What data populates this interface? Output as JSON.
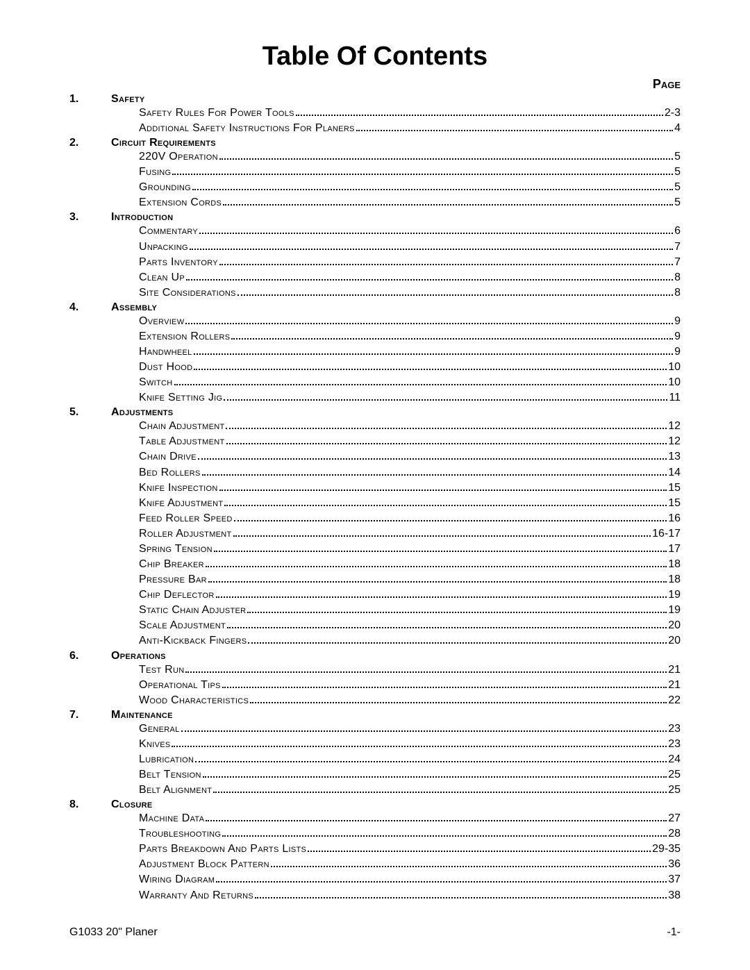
{
  "title": "Table Of Contents",
  "page_header": "Page",
  "text_color": "#000000",
  "background_color": "#ffffff",
  "title_fontsize": 38,
  "body_fontsize": 16,
  "footer_left": "G1033 20\" Planer",
  "footer_right": "-1-",
  "sections": [
    {
      "num": "1.",
      "title": "Safety",
      "entries": [
        {
          "label": "Safety Rules For Power Tools",
          "page": "2-3"
        },
        {
          "label": "Additional Safety Instructions For Planers",
          "page": "4"
        }
      ]
    },
    {
      "num": "2.",
      "title": "Circuit Requirements",
      "entries": [
        {
          "label": "220V Operation",
          "page": "5"
        },
        {
          "label": "Fusing",
          "page": "5"
        },
        {
          "label": "Grounding",
          "page": "5"
        },
        {
          "label": "Extension Cords",
          "page": "5"
        }
      ]
    },
    {
      "num": "3.",
      "title": "Introduction",
      "entries": [
        {
          "label": "Commentary",
          "page": "6"
        },
        {
          "label": "Unpacking",
          "page": "7"
        },
        {
          "label": "Parts Inventory",
          "page": "7"
        },
        {
          "label": "Clean Up",
          "page": "8"
        },
        {
          "label": "Site Considerations",
          "page": "8"
        }
      ]
    },
    {
      "num": "4.",
      "title": "Assembly",
      "entries": [
        {
          "label": "Overview",
          "page": "9"
        },
        {
          "label": "Extension Rollers",
          "page": "9"
        },
        {
          "label": "Handwheel",
          "page": "9"
        },
        {
          "label": "Dust Hood",
          "page": "10"
        },
        {
          "label": "Switch",
          "page": "10"
        },
        {
          "label": "Knife Setting Jig",
          "page": "11"
        }
      ]
    },
    {
      "num": "5.",
      "title": "Adjustments",
      "entries": [
        {
          "label": "Chain Adjustment",
          "page": "12"
        },
        {
          "label": "Table Adjustment",
          "page": "12"
        },
        {
          "label": "Chain Drive",
          "page": "13"
        },
        {
          "label": "Bed Rollers",
          "page": "14"
        },
        {
          "label": "Knife Inspection",
          "page": "15"
        },
        {
          "label": "Knife Adjustment",
          "page": "15"
        },
        {
          "label": "Feed Roller Speed",
          "page": "16"
        },
        {
          "label": "Roller Adjustment",
          "page": "16-17"
        },
        {
          "label": "Spring Tension",
          "page": "17"
        },
        {
          "label": "Chip Breaker",
          "page": "18"
        },
        {
          "label": "Pressure Bar",
          "page": "18"
        },
        {
          "label": "Chip Deflector",
          "page": "19"
        },
        {
          "label": "Static Chain Adjuster",
          "page": "19"
        },
        {
          "label": "Scale Adjustment",
          "page": "20"
        },
        {
          "label": "Anti-Kickback Fingers",
          "page": "20"
        }
      ]
    },
    {
      "num": "6.",
      "title": "Operations",
      "entries": [
        {
          "label": "Test Run",
          "page": "21"
        },
        {
          "label": "Operational Tips",
          "page": "21"
        },
        {
          "label": "Wood Characteristics",
          "page": "22"
        }
      ]
    },
    {
      "num": "7.",
      "title": "Maintenance",
      "entries": [
        {
          "label": "General",
          "page": "23"
        },
        {
          "label": "Knives",
          "page": "23"
        },
        {
          "label": "Lubrication",
          "page": "24"
        },
        {
          "label": "Belt Tension",
          "page": "25"
        },
        {
          "label": "Belt Alignment",
          "page": "25"
        }
      ]
    },
    {
      "num": "8.",
      "title": "Closure",
      "entries": [
        {
          "label": "Machine Data",
          "page": "27"
        },
        {
          "label": "Troubleshooting",
          "page": "28"
        },
        {
          "label": "Parts Breakdown And Parts Lists",
          "page": "29-35"
        },
        {
          "label": "Adjustment Block Pattern",
          "page": "36"
        },
        {
          "label": "Wiring Diagram",
          "page": "37"
        },
        {
          "label": "Warranty And Returns",
          "page": "38"
        }
      ]
    }
  ]
}
